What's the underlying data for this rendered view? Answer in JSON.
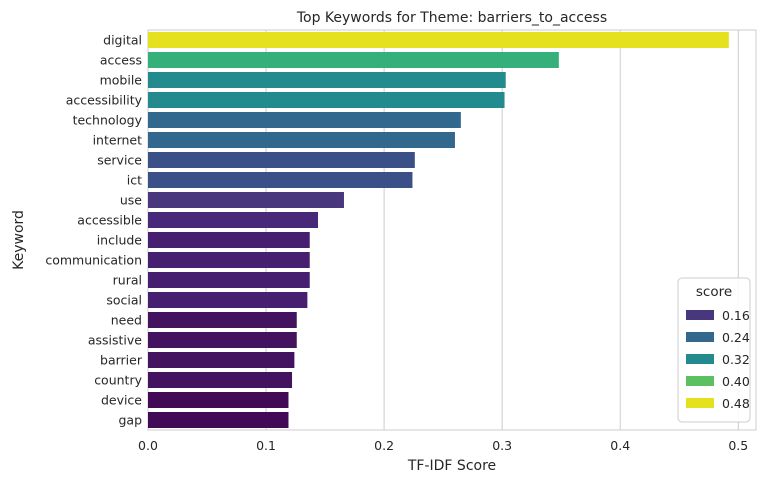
{
  "chart_data": {
    "type": "bar",
    "orientation": "horizontal",
    "title": "Top Keywords for Theme: barriers_to_access",
    "xlabel": "TF-IDF Score",
    "ylabel": "Keyword",
    "xlim": [
      0,
      0.515
    ],
    "xticks": [
      "0.0",
      "0.1",
      "0.2",
      "0.3",
      "0.4",
      "0.5"
    ],
    "grid": "vertical",
    "categories": [
      "digital",
      "access",
      "mobile",
      "accessibility",
      "technology",
      "internet",
      "service",
      "ict",
      "use",
      "accessible",
      "include",
      "communication",
      "rural",
      "social",
      "need",
      "assistive",
      "barrier",
      "country",
      "device",
      "gap"
    ],
    "values": [
      0.492,
      0.348,
      0.303,
      0.302,
      0.265,
      0.26,
      0.226,
      0.224,
      0.166,
      0.144,
      0.137,
      0.137,
      0.137,
      0.135,
      0.126,
      0.126,
      0.124,
      0.122,
      0.119,
      0.119
    ],
    "colors": [
      "#e6e11f",
      "#35b07a",
      "#238a8d",
      "#238a8d",
      "#33688e",
      "#33688e",
      "#3c5088",
      "#3c5088",
      "#48377c",
      "#482979",
      "#471f70",
      "#471f70",
      "#471f70",
      "#471f70",
      "#44135f",
      "#44135f",
      "#44135f",
      "#44135f",
      "#420a56",
      "#420a56"
    ],
    "legend": {
      "title": "score",
      "position": "lower-right",
      "entries": [
        {
          "label": "0.16",
          "color": "#48377c"
        },
        {
          "label": "0.24",
          "color": "#33688e"
        },
        {
          "label": "0.32",
          "color": "#238a8d"
        },
        {
          "label": "0.40",
          "color": "#5cc060"
        },
        {
          "label": "0.48",
          "color": "#e6e11f"
        }
      ]
    }
  }
}
